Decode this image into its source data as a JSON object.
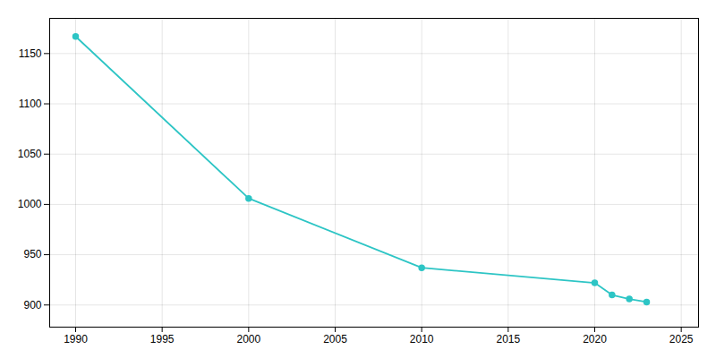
{
  "chart_data": {
    "type": "line",
    "x": [
      1990,
      2000,
      2010,
      2020,
      2021,
      2022,
      2023
    ],
    "values": [
      1167,
      1006,
      937,
      922,
      910,
      906,
      903
    ],
    "color": "#2DC5C5",
    "marker": "circle",
    "xlim": [
      1988.5,
      2026
    ],
    "ylim": [
      878,
      1185
    ],
    "xticks": [
      1990,
      1995,
      2000,
      2005,
      2010,
      2015,
      2020,
      2025
    ],
    "yticks": [
      900,
      950,
      1000,
      1050,
      1100,
      1150
    ],
    "grid": true
  }
}
